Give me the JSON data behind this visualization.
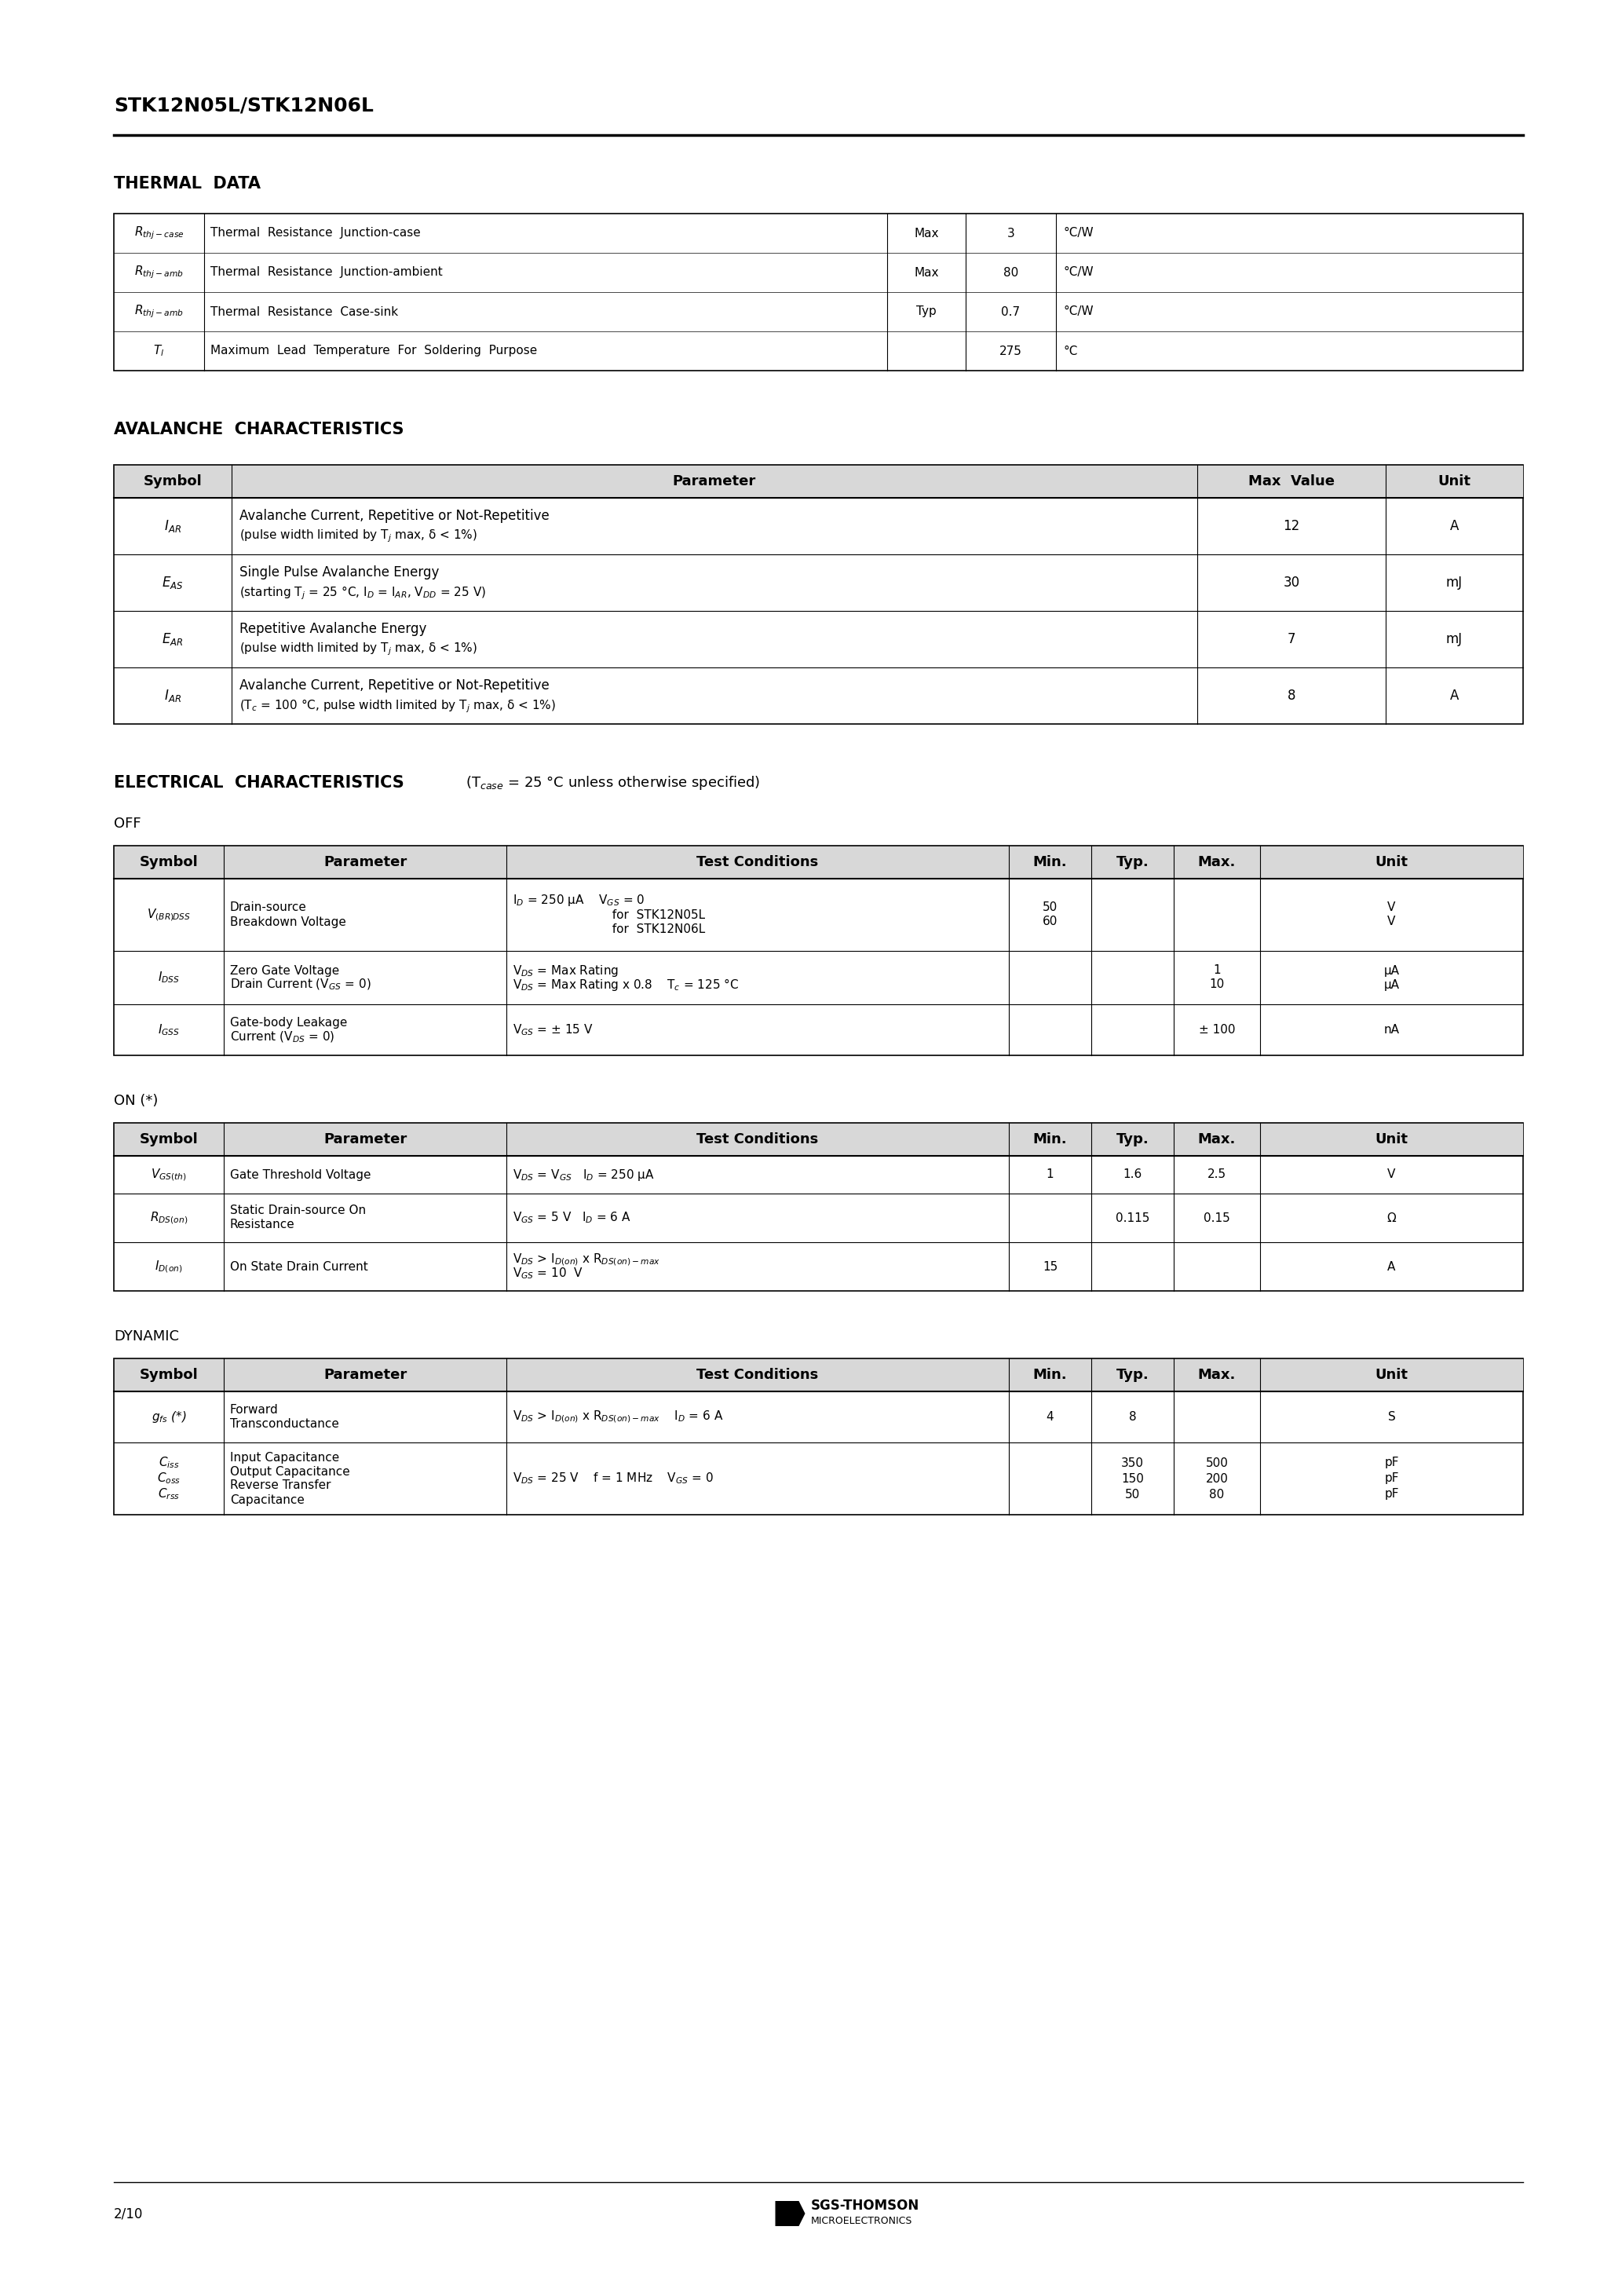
{
  "page_title": "STK12N05L/STK12N06L",
  "page_number": "2/10",
  "background_color": "#ffffff",
  "text_color": "#000000",
  "thermal_section_title": "THERMAL  DATA",
  "thermal_rows": [
    {
      "symbol": "R_thj-case",
      "sym_render": "R$_{thj-case}$",
      "description": "Thermal  Resistance  Junction-case",
      "condition": "Max",
      "value": "3",
      "unit": "°C/W"
    },
    {
      "symbol": "R_thj-amb",
      "sym_render": "R$_{thj-amb}$",
      "description": "Thermal  Resistance  Junction-ambient",
      "condition": "Max",
      "value": "80",
      "unit": "°C/W"
    },
    {
      "symbol": "R_thj-amb",
      "sym_render": "R$_{thj-amb}$",
      "description": "Thermal  Resistance  Case-sink",
      "condition": "Typ",
      "value": "0.7",
      "unit": "°C/W"
    },
    {
      "symbol": "T_l",
      "sym_render": "T$_l$",
      "description": "Maximum  Lead  Temperature  For  Soldering  Purpose",
      "condition": "",
      "value": "275",
      "unit": "°C"
    }
  ],
  "avalanche_section_title": "AVALANCHE  CHARACTERISTICS",
  "avalanche_header": [
    "Symbol",
    "Parameter",
    "Max  Value",
    "Unit"
  ],
  "avalanche_rows": [
    {
      "symbol": "I$_{AR}$",
      "parameter_line1": "Avalanche Current, Repetitive or Not-Repetitive",
      "parameter_line2": "(pulse width limited by T$_j$ max, δ < 1%)",
      "value": "12",
      "unit": "A"
    },
    {
      "symbol": "E$_{AS}$",
      "parameter_line1": "Single Pulse Avalanche Energy",
      "parameter_line2": "(starting T$_j$ = 25 °C, I$_D$ = I$_{AR}$, V$_{DD}$ = 25 V)",
      "value": "30",
      "unit": "mJ"
    },
    {
      "symbol": "E$_{AR}$",
      "parameter_line1": "Repetitive Avalanche Energy",
      "parameter_line2": "(pulse width limited by T$_j$ max, δ < 1%)",
      "value": "7",
      "unit": "mJ"
    },
    {
      "symbol": "I$_{AR}$",
      "parameter_line1": "Avalanche Current, Repetitive or Not-Repetitive",
      "parameter_line2": "(T$_c$ = 100 °C, pulse width limited by T$_j$ max, δ < 1%)",
      "value": "8",
      "unit": "A"
    }
  ],
  "electrical_section_title": "ELECTRICAL  CHARACTERISTICS",
  "electrical_condition": "(T$_{case}$ = 25 °C unless otherwise specified)",
  "off_label": "OFF",
  "off_header": [
    "Symbol",
    "Parameter",
    "Test Conditions",
    "Min.",
    "Typ.",
    "Max.",
    "Unit"
  ],
  "off_rows": [
    {
      "symbol": "V$_{(BR)DSS}$",
      "param": "Drain-source\nBreakdown Voltage",
      "cond_lines": [
        "I$_D$ = 250 μA    V$_{GS}$ = 0",
        "                          for  STK12N05L",
        "                          for  STK12N06L"
      ],
      "min_lines": [
        "50",
        "60"
      ],
      "typ": "",
      "max_lines": [],
      "unit_lines": [
        "V",
        "V"
      ]
    },
    {
      "symbol": "I$_{DSS}$",
      "param": "Zero Gate Voltage\nDrain Current (V$_{GS}$ = 0)",
      "cond_lines": [
        "V$_{DS}$ = Max Rating",
        "V$_{DS}$ = Max Rating x 0.8    T$_c$ = 125 °C"
      ],
      "min_lines": [],
      "typ": "",
      "max_lines": [
        "1",
        "10"
      ],
      "unit_lines": [
        "μA",
        "μA"
      ]
    },
    {
      "symbol": "I$_{GSS}$",
      "param": "Gate-body Leakage\nCurrent (V$_{DS}$ = 0)",
      "cond_lines": [
        "V$_{GS}$ = ± 15 V"
      ],
      "min_lines": [],
      "typ": "",
      "max_lines": [
        "± 100"
      ],
      "unit_lines": [
        "nA"
      ]
    }
  ],
  "on_label": "ON (*)",
  "on_header": [
    "Symbol",
    "Parameter",
    "Test Conditions",
    "Min.",
    "Typ.",
    "Max.",
    "Unit"
  ],
  "on_rows": [
    {
      "symbol": "V$_{GS(th)}$",
      "param": "Gate Threshold Voltage",
      "cond_lines": [
        "V$_{DS}$ = V$_{GS}$   I$_D$ = 250 μA"
      ],
      "min_lines": [
        "1"
      ],
      "typ": "1.6",
      "max_lines": [
        "2.5"
      ],
      "unit_lines": [
        "V"
      ]
    },
    {
      "symbol": "R$_{DS(on)}$",
      "param": "Static Drain-source On\nResistance",
      "cond_lines": [
        "V$_{GS}$ = 5 V   I$_D$ = 6 A"
      ],
      "min_lines": [],
      "typ": "0.115",
      "max_lines": [
        "0.15"
      ],
      "unit_lines": [
        "Ω"
      ]
    },
    {
      "symbol": "I$_{D(on)}$",
      "param": "On State Drain Current",
      "cond_lines": [
        "V$_{DS}$ > I$_{D(on)}$ x R$_{DS(on)-max}$",
        "V$_{GS}$ = 10  V"
      ],
      "min_lines": [
        "15"
      ],
      "typ": "",
      "max_lines": [],
      "unit_lines": [
        "A"
      ]
    }
  ],
  "dynamic_label": "DYNAMIC",
  "dynamic_header": [
    "Symbol",
    "Parameter",
    "Test Conditions",
    "Min.",
    "Typ.",
    "Max.",
    "Unit"
  ],
  "dynamic_rows": [
    {
      "symbol": "g$_{fs}$ (*)",
      "param": "Forward\nTransconductance",
      "cond_lines": [
        "V$_{DS}$ > I$_{D(on)}$ x R$_{DS(on)-max}$    I$_D$ = 6 A"
      ],
      "min_lines": [
        "4"
      ],
      "typ": "8",
      "max_lines": [],
      "unit_lines": [
        "S"
      ]
    },
    {
      "symbol": "C$_{iss}$\nC$_{oss}$\nC$_{rss}$",
      "param": "Input Capacitance\nOutput Capacitance\nReverse Transfer\nCapacitance",
      "cond_lines": [
        "V$_{DS}$ = 25 V    f = 1 MHz    V$_{GS}$ = 0"
      ],
      "min_lines": [],
      "typ": "350\n150\n50",
      "max_lines": [
        "500",
        "200",
        "80"
      ],
      "unit_lines": [
        "pF",
        "pF",
        "pF"
      ]
    }
  ]
}
